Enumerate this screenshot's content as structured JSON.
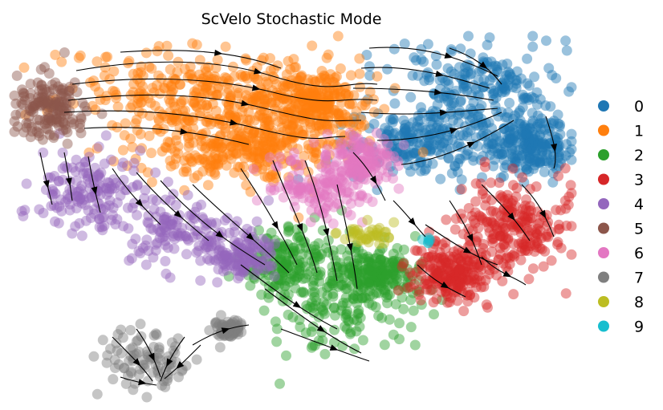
{
  "chart_data": {
    "type": "scatter",
    "title": "ScVelo Stochastic Mode",
    "subtype": "embedding scatter with velocity streamlines",
    "axes_visible": false,
    "grid": false,
    "legend_position": "right",
    "clusters": [
      {
        "label": "0",
        "color": "#1f77b4",
        "n_points": 650
      },
      {
        "label": "1",
        "color": "#ff7f0e",
        "n_points": 900
      },
      {
        "label": "2",
        "color": "#2ca02c",
        "n_points": 500
      },
      {
        "label": "3",
        "color": "#d62728",
        "n_points": 450
      },
      {
        "label": "4",
        "color": "#9467bd",
        "n_points": 420
      },
      {
        "label": "5",
        "color": "#8c564b",
        "n_points": 160
      },
      {
        "label": "6",
        "color": "#e377c2",
        "n_points": 280
      },
      {
        "label": "7",
        "color": "#7f7f7f",
        "n_points": 180
      },
      {
        "label": "8",
        "color": "#bcbd22",
        "n_points": 40
      },
      {
        "label": "9",
        "color": "#17becf",
        "n_points": 6
      }
    ],
    "point_alpha": 0.45,
    "streamline_color": "#000000"
  }
}
